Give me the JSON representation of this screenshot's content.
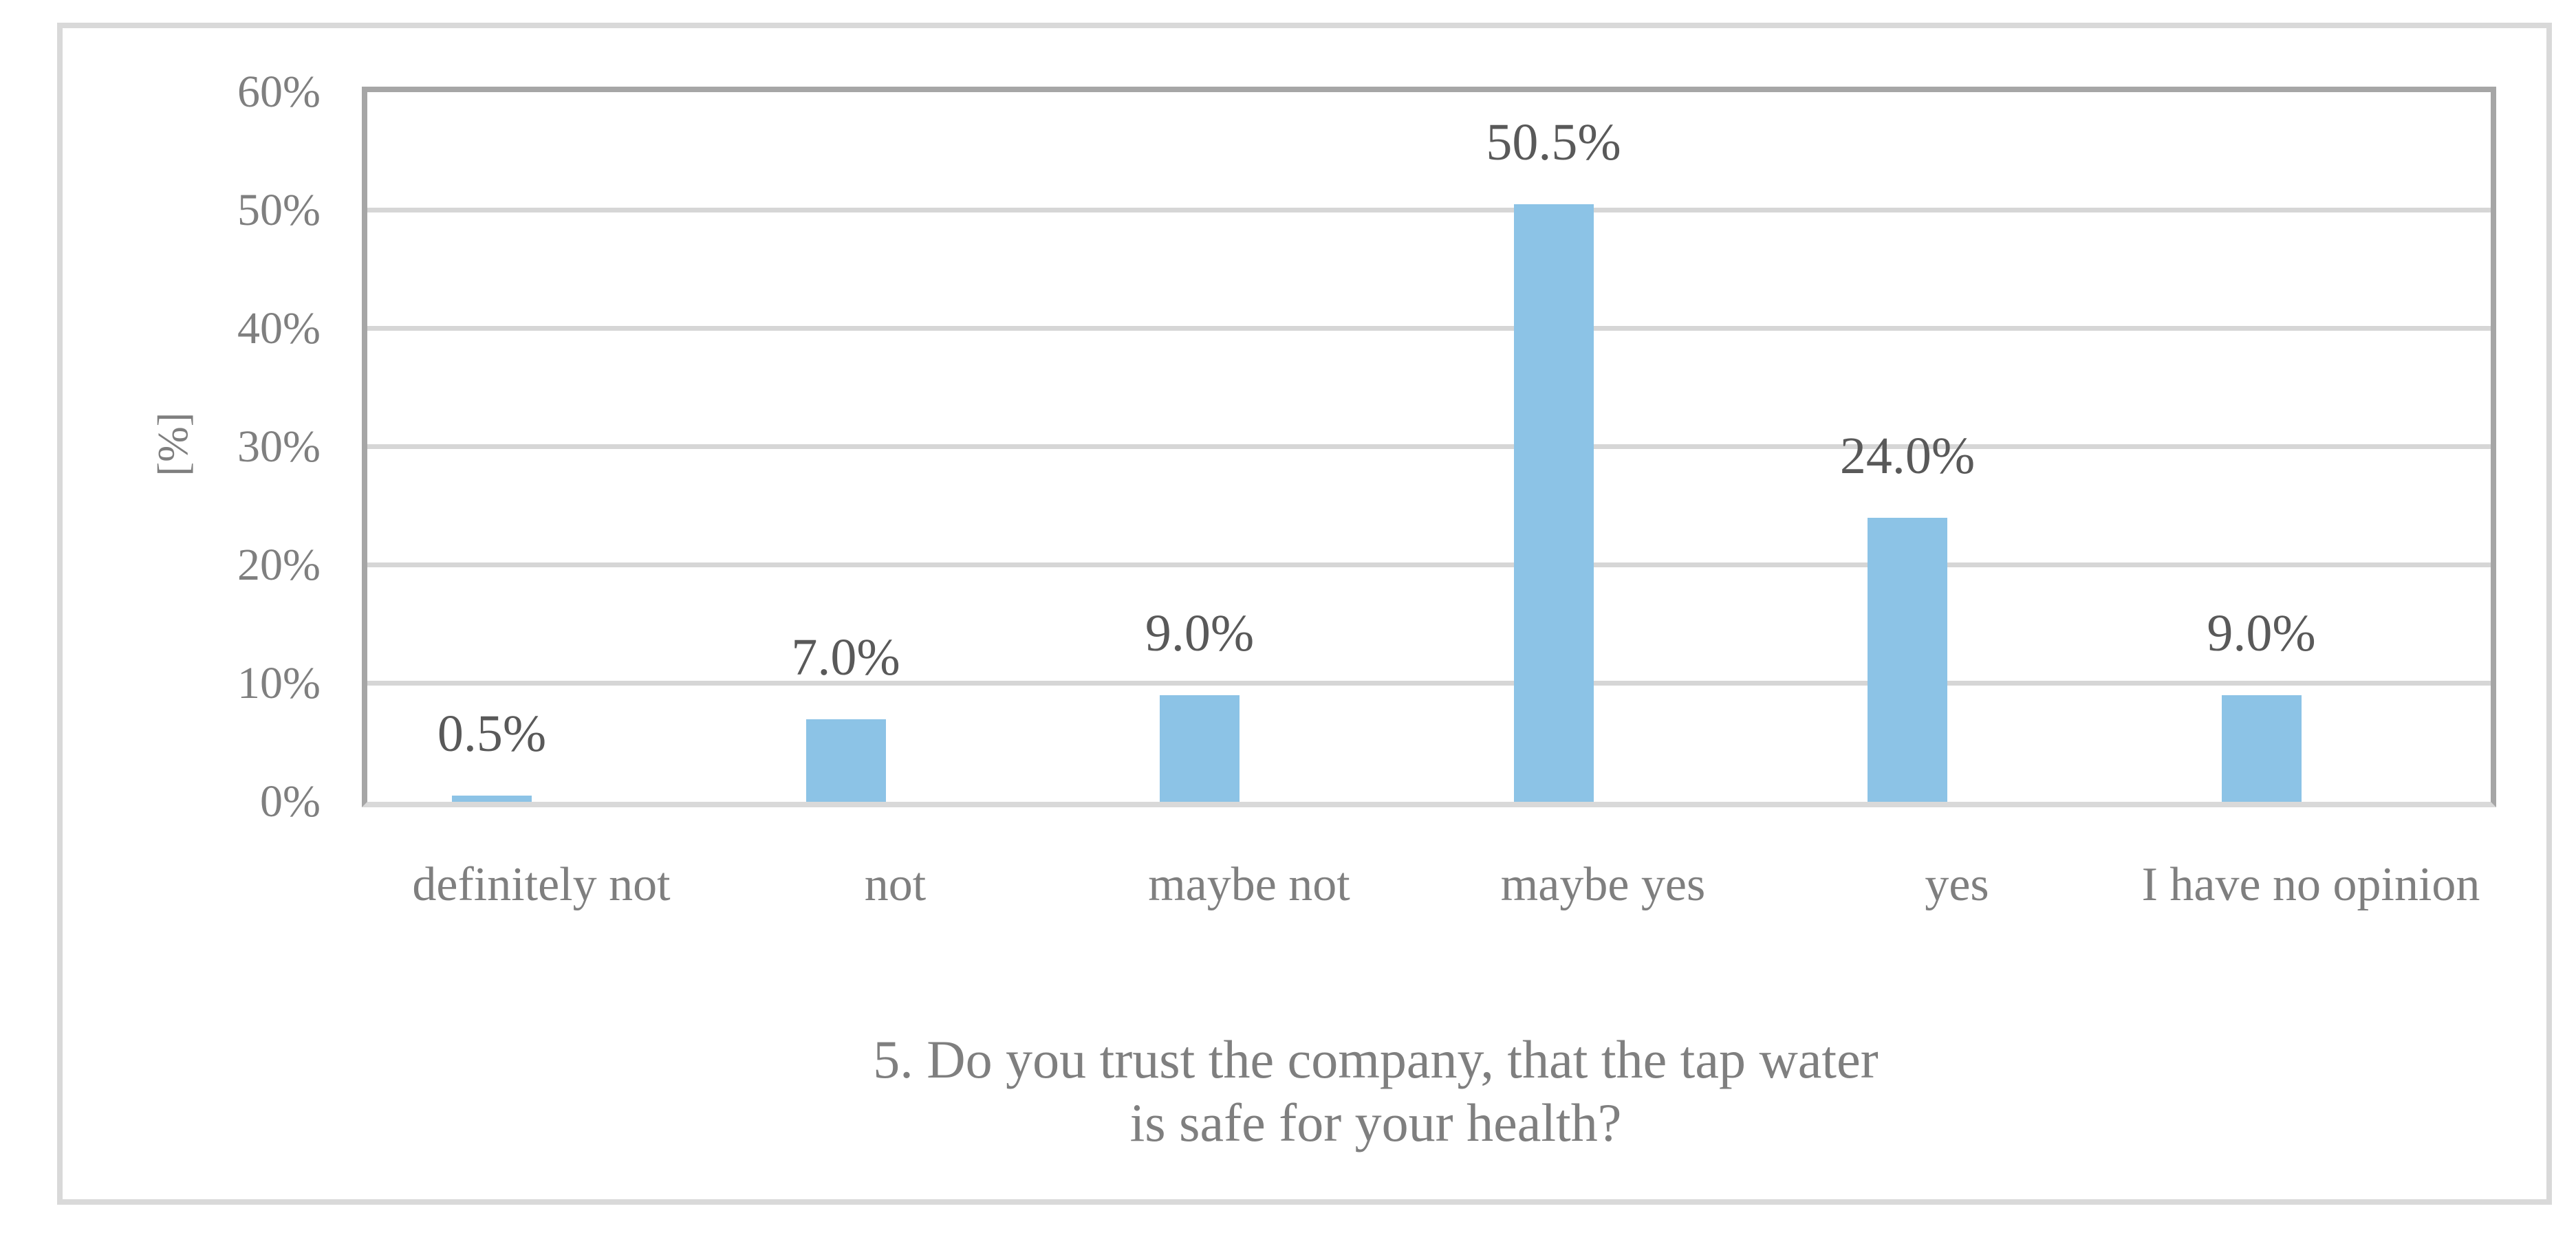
{
  "chart_data": {
    "type": "bar",
    "title": "5. Do you trust the company, that the tap water is safe for your health?",
    "title_lines": {
      "line1": "5. Do you trust the company, that the tap water",
      "line2": "is safe for your health?"
    },
    "ylabel": "[%]",
    "xlabel": "",
    "categories": [
      "definitely not",
      "not",
      "maybe not",
      "maybe yes",
      "yes",
      "I have no opinion"
    ],
    "values": [
      0.5,
      7.0,
      9.0,
      50.5,
      24.0,
      9.0
    ],
    "data_labels": [
      "0.5%",
      "7.0%",
      "9.0%",
      "50.5%",
      "24.0%",
      "9.0%"
    ],
    "yticks": [
      0,
      10,
      20,
      30,
      40,
      50,
      60
    ],
    "ytick_labels": [
      "0%",
      "10%",
      "20%",
      "30%",
      "40%",
      "50%",
      "60%"
    ],
    "ylim": [
      0,
      60
    ],
    "grid": true,
    "legend_position": "none",
    "colors": {
      "bar": "#8cc3e6",
      "gridline": "#d6d6d6",
      "plot_border": "#a6a6a6",
      "baseline": "#d9d9d9",
      "outer_border": "#d9d9d9",
      "tick_text": "#7f7f7f",
      "category_text": "#7f7f7f",
      "caption_text": "#7f7f7f",
      "data_label_text": "#595959",
      "background": "#ffffff"
    }
  }
}
